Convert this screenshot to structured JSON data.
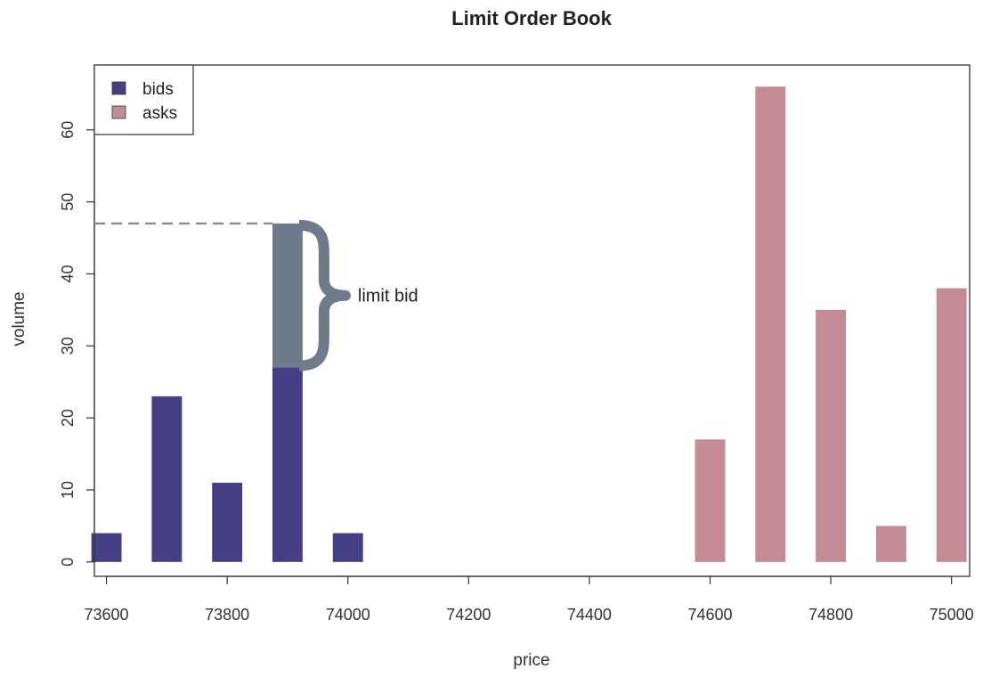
{
  "chart_data": {
    "type": "bar",
    "title": "Limit Order Book",
    "xlabel": "price",
    "ylabel": "volume",
    "xlim": [
      73580,
      75030
    ],
    "ylim": [
      -2,
      69
    ],
    "x_ticks": [
      "73600",
      "73800",
      "74000",
      "74200",
      "74400",
      "74600",
      "74800",
      "75000"
    ],
    "y_ticks": [
      "0",
      "10",
      "20",
      "30",
      "40",
      "50",
      "60"
    ],
    "bar_width": 50,
    "series": [
      {
        "name": "bids",
        "color": "#453f86",
        "points": [
          {
            "x": 73600,
            "y": 4
          },
          {
            "x": 73700,
            "y": 23
          },
          {
            "x": 73800,
            "y": 11
          },
          {
            "x": 73900,
            "y": 27
          },
          {
            "x": 74000,
            "y": 4
          }
        ]
      },
      {
        "name": "asks",
        "color": "#c48b94",
        "points": [
          {
            "x": 74600,
            "y": 17
          },
          {
            "x": 74700,
            "y": 66
          },
          {
            "x": 74800,
            "y": 35
          },
          {
            "x": 74900,
            "y": 5
          },
          {
            "x": 75000,
            "y": 38
          }
        ]
      }
    ],
    "annotation": {
      "text": "limit bid",
      "x": 73900,
      "y_from": 27,
      "y_to": 47,
      "color": "#6e7b8b",
      "dashed_line_color": "#888888"
    },
    "legend": {
      "position": "top-left",
      "box": true
    },
    "grid": false
  }
}
